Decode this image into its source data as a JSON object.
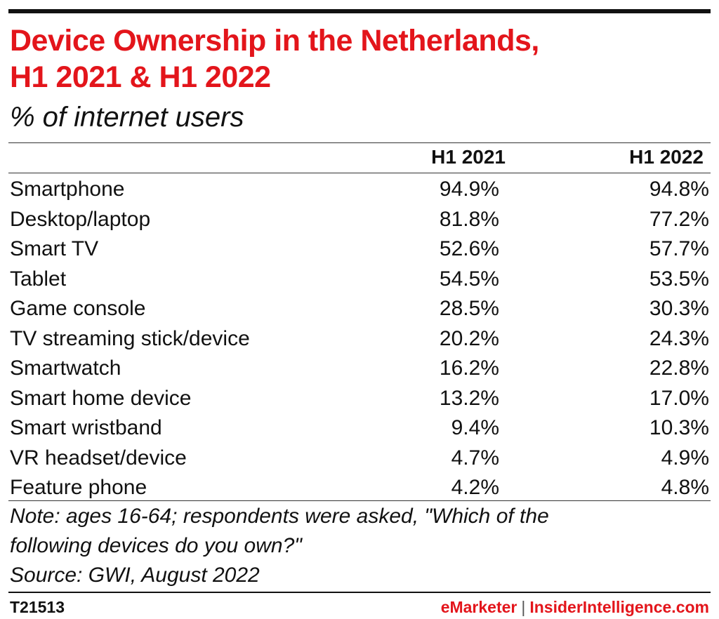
{
  "chart_data": {
    "type": "table",
    "title_lines": [
      "Device Ownership in the Netherlands,",
      "H1 2021 & H1 2022"
    ],
    "subtitle": "% of internet users",
    "columns": [
      "H1 2021",
      "H1 2022"
    ],
    "rows": [
      {
        "label": "Smartphone",
        "values": [
          "94.9%",
          "94.8%"
        ]
      },
      {
        "label": "Desktop/laptop",
        "values": [
          "81.8%",
          "77.2%"
        ]
      },
      {
        "label": "Smart TV",
        "values": [
          "52.6%",
          "57.7%"
        ]
      },
      {
        "label": "Tablet",
        "values": [
          "54.5%",
          "53.5%"
        ]
      },
      {
        "label": "Game console",
        "values": [
          "28.5%",
          "30.3%"
        ]
      },
      {
        "label": "TV streaming stick/device",
        "values": [
          "20.2%",
          "24.3%"
        ]
      },
      {
        "label": "Smartwatch",
        "values": [
          "16.2%",
          "22.8%"
        ]
      },
      {
        "label": "Smart home device",
        "values": [
          "13.2%",
          "17.0%"
        ]
      },
      {
        "label": "Smart wristband",
        "values": [
          "9.4%",
          "10.3%"
        ]
      },
      {
        "label": "VR headset/device",
        "values": [
          "4.7%",
          "4.9%"
        ]
      },
      {
        "label": "Feature phone",
        "values": [
          "4.2%",
          "4.8%"
        ]
      }
    ],
    "note_lines": [
      "Note: ages 16-64; respondents were asked, \"Which of the",
      "following devices do you own?\""
    ],
    "source": "Source: GWI, August 2022"
  },
  "footer": {
    "chart_id": "T21513",
    "brand_emarketer": "eMarketer",
    "brand_separator": "|",
    "brand_insider": "InsiderIntelligence.com"
  },
  "colors": {
    "title": "#e3151b",
    "text": "#111111",
    "brand": "#e3151b"
  }
}
